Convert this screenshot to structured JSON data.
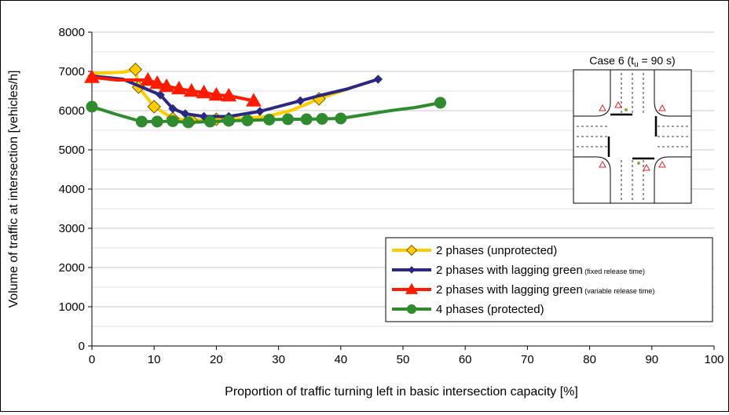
{
  "chart_data": {
    "type": "line",
    "xlabel": "Proportion of traffic turning left in basic intersection capacity [%]",
    "ylabel": "Volume of traffic at intersection [vehicles/h]",
    "xlim": [
      0,
      100
    ],
    "ylim": [
      0,
      8000
    ],
    "x_ticks": [
      0,
      10,
      20,
      30,
      40,
      50,
      60,
      70,
      80,
      90,
      100
    ],
    "y_ticks": [
      0,
      1000,
      2000,
      3000,
      4000,
      5000,
      6000,
      7000,
      8000
    ],
    "grid": "horizontal",
    "legend_position": "bottom-right",
    "inset": {
      "title_prefix": "Case 6 (t",
      "title_sub": "u",
      "title_suffix": " = 90 s)"
    },
    "series": [
      {
        "name": "2 phases (unprotected)",
        "name_note": "",
        "color": "#ffcc00",
        "marker": "diamond",
        "marker_fill": "#ffcc00",
        "marker_stroke": "#7a5a00",
        "points": [
          [
            0.5,
            6950
          ],
          [
            5,
            6980
          ],
          [
            7,
            7050
          ],
          [
            7.5,
            6600
          ],
          [
            10,
            6100
          ],
          [
            13,
            5800
          ],
          [
            16,
            5750
          ],
          [
            20,
            5780
          ],
          [
            24,
            5800
          ],
          [
            28,
            5850
          ],
          [
            32,
            6000
          ],
          [
            36.5,
            6300
          ],
          [
            42,
            6600
          ],
          [
            46,
            6800
          ]
        ],
        "markers": [
          [
            7,
            7050
          ],
          [
            7.5,
            6600
          ],
          [
            10,
            6100
          ],
          [
            13,
            5800
          ],
          [
            16,
            5750
          ],
          [
            20,
            5780
          ],
          [
            36.5,
            6300
          ]
        ]
      },
      {
        "name": "2 phases with lagging green",
        "name_note": "(fixed release time)",
        "color": "#2a2880",
        "marker": "small-diamond",
        "marker_fill": "#2a2880",
        "marker_stroke": "#2a2880",
        "points": [
          [
            0,
            6880
          ],
          [
            2,
            6850
          ],
          [
            5,
            6800
          ],
          [
            11,
            6400
          ],
          [
            13,
            6050
          ],
          [
            15,
            5920
          ],
          [
            18,
            5850
          ],
          [
            22,
            5850
          ],
          [
            27,
            5980
          ],
          [
            33.5,
            6250
          ],
          [
            36.5,
            6380
          ],
          [
            41,
            6550
          ],
          [
            46,
            6800
          ]
        ],
        "markers": [
          [
            0,
            6880
          ],
          [
            11,
            6400
          ],
          [
            13,
            6050
          ],
          [
            15,
            5920
          ],
          [
            18,
            5850
          ],
          [
            22,
            5850
          ],
          [
            27,
            5980
          ],
          [
            33.5,
            6250
          ],
          [
            46,
            6800
          ]
        ]
      },
      {
        "name": "2 phases with lagging green",
        "name_note": "(variable release time)",
        "color": "#ff1a00",
        "marker": "triangle",
        "marker_fill": "#ff1a00",
        "marker_stroke": "#ff1a00",
        "points": [
          [
            0,
            6850
          ],
          [
            4,
            6780
          ],
          [
            9,
            6780
          ],
          [
            10.5,
            6700
          ],
          [
            12,
            6620
          ],
          [
            14,
            6560
          ],
          [
            16,
            6500
          ],
          [
            18,
            6460
          ],
          [
            20,
            6400
          ],
          [
            22,
            6380
          ],
          [
            26,
            6250
          ]
        ],
        "markers": [
          [
            0,
            6850
          ],
          [
            9,
            6780
          ],
          [
            10.5,
            6700
          ],
          [
            12,
            6620
          ],
          [
            14,
            6560
          ],
          [
            16,
            6500
          ],
          [
            18,
            6460
          ],
          [
            20,
            6400
          ],
          [
            22,
            6380
          ],
          [
            26,
            6250
          ]
        ]
      },
      {
        "name": "4 phases (protected)",
        "name_note": "",
        "color": "#2e8b2e",
        "marker": "circle",
        "marker_fill": "#2e8b2e",
        "marker_stroke": "#2e8b2e",
        "points": [
          [
            0,
            6100
          ],
          [
            4,
            5900
          ],
          [
            8,
            5720
          ],
          [
            10.5,
            5720
          ],
          [
            13,
            5730
          ],
          [
            15.5,
            5700
          ],
          [
            19,
            5720
          ],
          [
            22,
            5740
          ],
          [
            25,
            5750
          ],
          [
            28.5,
            5770
          ],
          [
            31.5,
            5780
          ],
          [
            34.5,
            5780
          ],
          [
            37,
            5790
          ],
          [
            40,
            5800
          ],
          [
            44,
            5900
          ],
          [
            48,
            6000
          ],
          [
            52,
            6080
          ],
          [
            56,
            6200
          ]
        ],
        "markers": [
          [
            0,
            6100
          ],
          [
            8,
            5720
          ],
          [
            10.5,
            5720
          ],
          [
            13,
            5730
          ],
          [
            15.5,
            5700
          ],
          [
            19,
            5720
          ],
          [
            22,
            5740
          ],
          [
            25,
            5750
          ],
          [
            28.5,
            5770
          ],
          [
            31.5,
            5780
          ],
          [
            34.5,
            5780
          ],
          [
            37,
            5790
          ],
          [
            40,
            5800
          ],
          [
            56,
            6200
          ]
        ]
      }
    ]
  }
}
